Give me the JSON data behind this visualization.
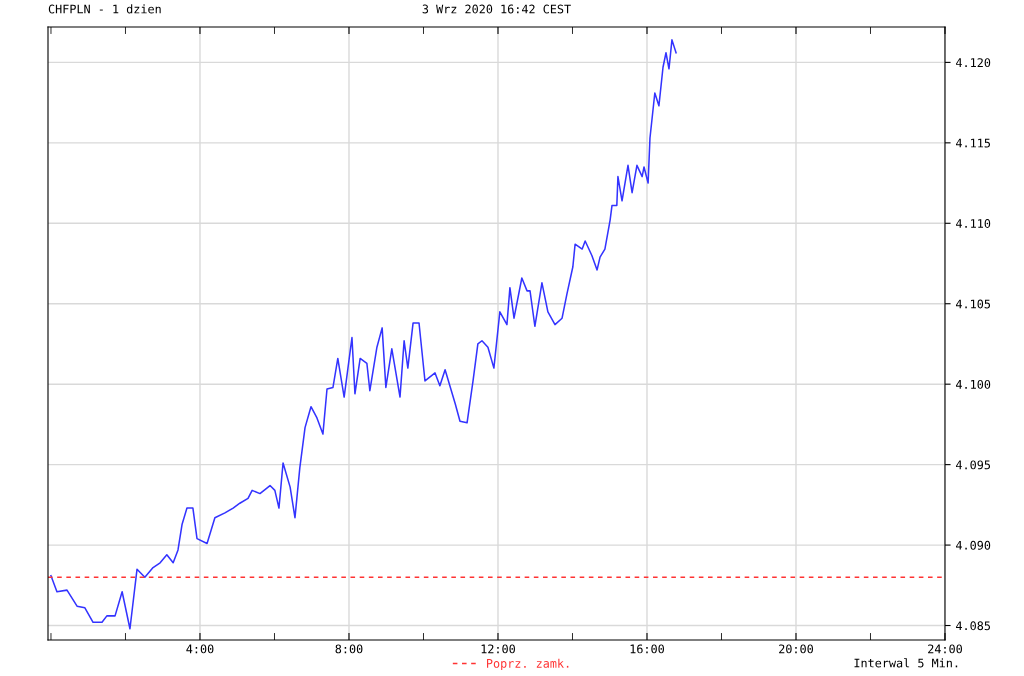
{
  "chart_data": {
    "type": "line",
    "title": "CHFPLN - 1 dzien",
    "subtitle": "3 Wrz 2020 16:42 CEST",
    "annotations": [
      "Interwal 5 Min."
    ],
    "x": [
      0.0,
      0.16,
      0.43,
      0.7,
      0.91,
      1.13,
      1.37,
      1.5,
      1.72,
      1.91,
      2.12,
      2.31,
      2.52,
      2.74,
      2.93,
      3.11,
      3.28,
      3.41,
      3.52,
      3.65,
      3.81,
      3.92,
      4.19,
      4.4,
      4.67,
      4.89,
      5.07,
      5.29,
      5.4,
      5.61,
      5.88,
      6.01,
      6.12,
      6.23,
      6.42,
      6.55,
      6.68,
      6.82,
      6.98,
      7.14,
      7.3,
      7.41,
      7.57,
      7.7,
      7.87,
      8.08,
      8.16,
      8.3,
      8.48,
      8.56,
      8.75,
      8.89,
      8.99,
      9.15,
      9.37,
      9.48,
      9.58,
      9.72,
      9.88,
      10.04,
      10.31,
      10.44,
      10.58,
      10.85,
      10.98,
      11.17,
      11.33,
      11.46,
      11.57,
      11.73,
      11.89,
      12.05,
      12.24,
      12.32,
      12.43,
      12.64,
      12.78,
      12.86,
      12.99,
      13.18,
      13.34,
      13.53,
      13.72,
      13.85,
      14.01,
      14.07,
      14.26,
      14.34,
      14.52,
      14.66,
      14.74,
      14.87,
      15.01,
      15.06,
      15.19,
      15.22,
      15.33,
      15.49,
      15.6,
      15.73,
      15.87,
      15.92,
      16.03,
      16.08,
      16.21,
      16.32,
      16.43,
      16.51,
      16.59,
      16.67,
      16.78
    ],
    "series": [
      {
        "color": "#3333ff",
        "values": [
          4.0881,
          4.0871,
          4.0872,
          4.0862,
          4.0861,
          4.0852,
          4.0852,
          4.0856,
          4.0856,
          4.0871,
          4.0848,
          4.0885,
          4.088,
          4.0886,
          4.0889,
          4.0894,
          4.0889,
          4.0897,
          4.0913,
          4.0923,
          4.0923,
          4.0904,
          4.0901,
          4.0917,
          4.092,
          4.0923,
          4.0926,
          4.0929,
          4.0934,
          4.0932,
          4.0937,
          4.0934,
          4.0923,
          4.0951,
          4.0936,
          4.0917,
          4.0948,
          4.0973,
          4.0986,
          4.0979,
          4.0969,
          4.0997,
          4.0998,
          4.1016,
          4.0992,
          4.1029,
          4.0994,
          4.1016,
          4.1013,
          4.0996,
          4.1023,
          4.1035,
          4.0998,
          4.1022,
          4.0992,
          4.1027,
          4.101,
          4.1038,
          4.1038,
          4.1002,
          4.1007,
          4.0999,
          4.1009,
          4.0988,
          4.0977,
          4.0976,
          4.1002,
          4.1025,
          4.1027,
          4.1023,
          4.101,
          4.1045,
          4.1037,
          4.106,
          4.1041,
          4.1066,
          4.1058,
          4.1058,
          4.1036,
          4.1063,
          4.1045,
          4.1037,
          4.1041,
          4.1056,
          4.1073,
          4.1087,
          4.1084,
          4.1089,
          4.108,
          4.1071,
          4.1079,
          4.1084,
          4.1102,
          4.1111,
          4.1111,
          4.1129,
          4.1114,
          4.1136,
          4.1119,
          4.1136,
          4.1129,
          4.1135,
          4.1125,
          4.1153,
          4.1181,
          4.1173,
          4.1197,
          4.1206,
          4.1196,
          4.1214,
          4.1206
        ]
      }
    ],
    "xlim": [
      -0.08,
      24
    ],
    "xticks": [
      {
        "value": 0,
        "label": null
      },
      {
        "value": 2,
        "label": null
      },
      {
        "value": 4,
        "label": "4:00"
      },
      {
        "value": 6,
        "label": null
      },
      {
        "value": 8,
        "label": "8:00"
      },
      {
        "value": 10,
        "label": null
      },
      {
        "value": 12,
        "label": "12:00"
      },
      {
        "value": 14,
        "label": null
      },
      {
        "value": 16,
        "label": "16:00"
      },
      {
        "value": 18,
        "label": null
      },
      {
        "value": 20,
        "label": "20:00"
      },
      {
        "value": 22,
        "label": null
      },
      {
        "value": 24,
        "label": "24:00"
      }
    ],
    "ylim": [
      4.0841,
      4.1222
    ],
    "yticks": [
      {
        "value": 4.085,
        "label": "4.085"
      },
      {
        "value": 4.09,
        "label": "4.090"
      },
      {
        "value": 4.095,
        "label": "4.095"
      },
      {
        "value": 4.1,
        "label": "4.100"
      },
      {
        "value": 4.105,
        "label": "4.105"
      },
      {
        "value": 4.11,
        "label": "4.110"
      },
      {
        "value": 4.115,
        "label": "4.115"
      },
      {
        "value": 4.12,
        "label": "4.120"
      }
    ],
    "ref_lines": [
      {
        "axis": "y",
        "value": 4.088,
        "label": "Poprz. zamk.",
        "color": "#ff3333",
        "line_style": "dashed"
      }
    ],
    "grid": true,
    "legend": "bottom",
    "line_style": "solid",
    "marker": "none"
  }
}
